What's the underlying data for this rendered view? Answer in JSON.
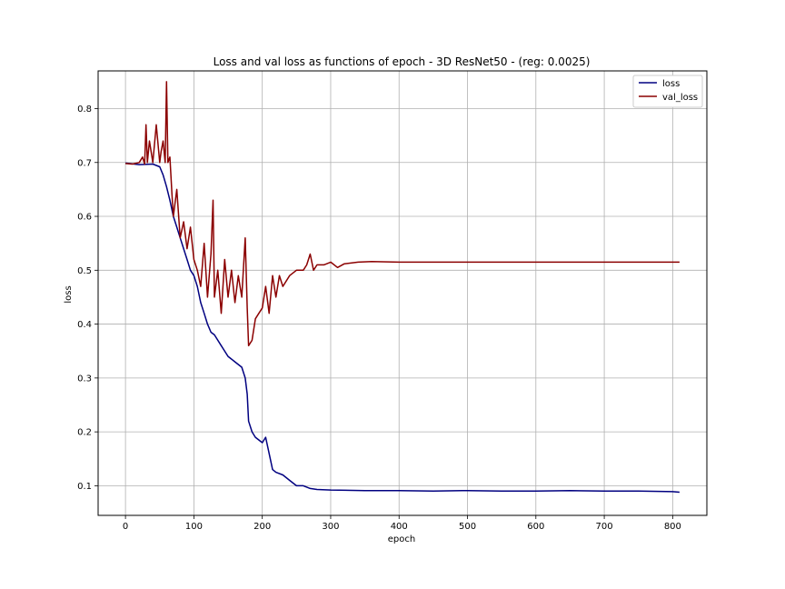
{
  "chart_data": {
    "type": "line",
    "title": "Loss and val loss as functions of epoch - 3D ResNet50 - (reg: 0.0025)",
    "xlabel": "epoch",
    "ylabel": "loss",
    "xlim": [
      -40,
      850
    ],
    "ylim": [
      0.045,
      0.87
    ],
    "xticks": [
      0,
      100,
      200,
      300,
      400,
      500,
      600,
      700,
      800
    ],
    "yticks": [
      0.1,
      0.2,
      0.3,
      0.4,
      0.5,
      0.6,
      0.7,
      0.8
    ],
    "xtick_labels": [
      "0",
      "100",
      "200",
      "300",
      "400",
      "500",
      "600",
      "700",
      "800"
    ],
    "ytick_labels": [
      "0.1",
      "0.2",
      "0.3",
      "0.4",
      "0.5",
      "0.6",
      "0.7",
      "0.8"
    ],
    "grid": true,
    "legend_position": "top-right",
    "series": [
      {
        "name": "loss",
        "color": "#000080",
        "x": [
          0,
          20,
          40,
          50,
          55,
          60,
          65,
          70,
          75,
          80,
          85,
          90,
          95,
          100,
          105,
          110,
          115,
          120,
          125,
          130,
          140,
          150,
          160,
          170,
          175,
          178,
          180,
          185,
          190,
          200,
          205,
          210,
          215,
          220,
          230,
          240,
          250,
          260,
          270,
          280,
          300,
          350,
          400,
          450,
          500,
          550,
          600,
          650,
          700,
          750,
          800,
          810
        ],
        "y": [
          0.699,
          0.696,
          0.697,
          0.692,
          0.677,
          0.655,
          0.63,
          0.6,
          0.58,
          0.56,
          0.54,
          0.52,
          0.5,
          0.49,
          0.47,
          0.44,
          0.42,
          0.4,
          0.385,
          0.38,
          0.36,
          0.34,
          0.33,
          0.32,
          0.3,
          0.27,
          0.22,
          0.2,
          0.19,
          0.18,
          0.19,
          0.16,
          0.13,
          0.125,
          0.12,
          0.11,
          0.1,
          0.1,
          0.095,
          0.093,
          0.092,
          0.091,
          0.091,
          0.09,
          0.091,
          0.09,
          0.09,
          0.091,
          0.09,
          0.09,
          0.089,
          0.088
        ]
      },
      {
        "name": "val_loss",
        "color": "#8b0000",
        "x": [
          0,
          10,
          20,
          25,
          28,
          30,
          32,
          35,
          40,
          45,
          50,
          52,
          55,
          58,
          60,
          62,
          65,
          68,
          70,
          75,
          80,
          85,
          90,
          95,
          100,
          105,
          110,
          115,
          120,
          125,
          128,
          130,
          135,
          140,
          145,
          150,
          155,
          160,
          165,
          170,
          175,
          178,
          180,
          185,
          190,
          195,
          200,
          205,
          210,
          215,
          220,
          225,
          230,
          240,
          250,
          260,
          265,
          270,
          275,
          280,
          290,
          300,
          310,
          320,
          340,
          360,
          400,
          450,
          500,
          550,
          600,
          650,
          700,
          750,
          800,
          810
        ],
        "y": [
          0.698,
          0.697,
          0.7,
          0.71,
          0.697,
          0.77,
          0.7,
          0.74,
          0.7,
          0.77,
          0.7,
          0.72,
          0.74,
          0.7,
          0.85,
          0.7,
          0.71,
          0.64,
          0.6,
          0.65,
          0.56,
          0.59,
          0.54,
          0.58,
          0.52,
          0.5,
          0.47,
          0.55,
          0.45,
          0.53,
          0.63,
          0.45,
          0.5,
          0.42,
          0.52,
          0.45,
          0.5,
          0.44,
          0.49,
          0.45,
          0.56,
          0.43,
          0.36,
          0.37,
          0.41,
          0.42,
          0.43,
          0.47,
          0.42,
          0.49,
          0.45,
          0.49,
          0.47,
          0.49,
          0.5,
          0.5,
          0.51,
          0.53,
          0.5,
          0.51,
          0.51,
          0.515,
          0.505,
          0.512,
          0.515,
          0.516,
          0.515,
          0.515,
          0.515,
          0.515,
          0.515,
          0.515,
          0.515,
          0.515,
          0.515,
          0.515
        ]
      }
    ]
  }
}
